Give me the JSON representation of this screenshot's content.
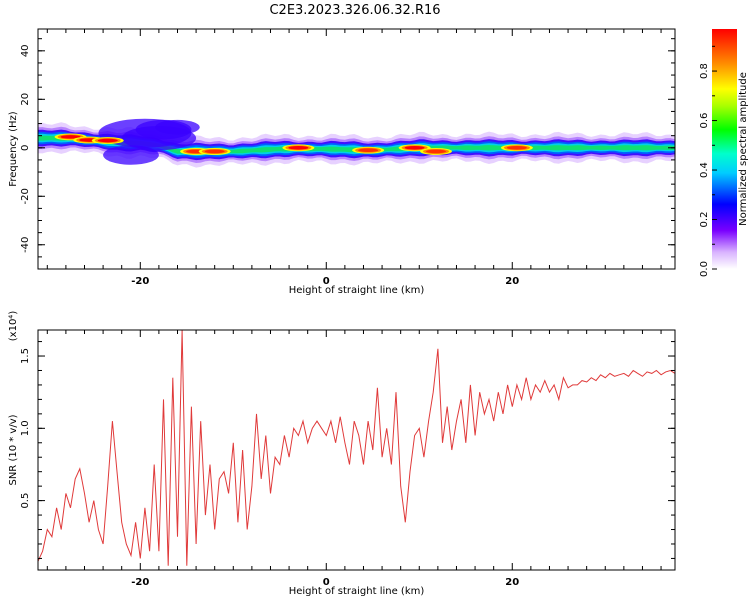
{
  "title": "C2E3.2023.326.06.32.R16",
  "chart_data": [
    {
      "type": "heatmap",
      "xlabel": "Height of straight line (km)",
      "ylabel": "Frequency (Hz)",
      "xlim": [
        -31,
        37.5
      ],
      "ylim": [
        -50,
        49
      ],
      "x_ticks": [
        -20,
        0,
        20
      ],
      "y_ticks": [
        -40,
        -20,
        0,
        20,
        40
      ],
      "colorbar": {
        "label": "Normalized spectral amplitude",
        "range": [
          0,
          0.97
        ],
        "ticks": [
          0.0,
          0.2,
          0.4,
          0.6,
          0.8
        ],
        "colormap": "rainbow (white-violet-blue-cyan-green-yellow-red)"
      },
      "ridge": {
        "x": [
          -31,
          -28,
          -25,
          -22,
          -20,
          -18,
          -16,
          -14,
          -10,
          -5,
          0,
          5,
          10,
          15,
          20,
          25,
          30,
          37.5
        ],
        "y": [
          4,
          4,
          3,
          2,
          2,
          1,
          -1.5,
          -1.5,
          -1.5,
          -0.5,
          -0.5,
          -1,
          0,
          0,
          0,
          0,
          0,
          0
        ]
      },
      "hotspots": [
        {
          "x": -27.5,
          "y": 4.5,
          "amp": 0.95
        },
        {
          "x": -25.5,
          "y": 3.2,
          "amp": 0.95
        },
        {
          "x": -23.5,
          "y": 3.0,
          "amp": 0.95
        },
        {
          "x": -14.0,
          "y": -1.5,
          "amp": 0.9
        },
        {
          "x": -12.0,
          "y": -1.5,
          "amp": 0.85
        },
        {
          "x": -3.0,
          "y": 0.0,
          "amp": 0.97
        },
        {
          "x": 4.5,
          "y": -1.0,
          "amp": 0.9
        },
        {
          "x": 9.5,
          "y": 0.0,
          "amp": 0.97
        },
        {
          "x": 11.8,
          "y": -1.5,
          "amp": 0.9
        },
        {
          "x": 20.5,
          "y": 0.0,
          "amp": 0.85
        }
      ]
    },
    {
      "type": "line",
      "xlabel": "Height of straight line (km)",
      "ylabel": "SNR (10 * v/v)",
      "y_exponent": "(x10⁴)",
      "xlim": [
        -31,
        37.5
      ],
      "ylim": [
        0.02,
        1.68
      ],
      "x_ticks": [
        -20,
        0,
        20
      ],
      "y_ticks": [
        0.5,
        1.0,
        1.5
      ],
      "color": "#e03a3a",
      "series": [
        {
          "x": [
            -31.0,
            -30.5,
            -30.0,
            -29.5,
            -29.0,
            -28.5,
            -28.0,
            -27.5,
            -27.0,
            -26.5,
            -26.0,
            -25.5,
            -25.0,
            -24.5,
            -24.0,
            -23.5,
            -23.0,
            -22.5,
            -22.0,
            -21.5,
            -21.0,
            -20.5,
            -20.0,
            -19.5,
            -19.0,
            -18.5,
            -18.0,
            -17.5,
            -17.0,
            -16.5,
            -16.0,
            -15.5,
            -15.0,
            -14.5,
            -14.0,
            -13.5,
            -13.0,
            -12.5,
            -12.0,
            -11.5,
            -11.0,
            -10.5,
            -10.0,
            -9.5,
            -9.0,
            -8.5,
            -8.0,
            -7.5,
            -7.0,
            -6.5,
            -6.0,
            -5.5,
            -5.0,
            -4.5,
            -4.0,
            -3.5,
            -3.0,
            -2.5,
            -2.0,
            -1.5,
            -1.0,
            -0.5,
            0.0,
            0.5,
            1.0,
            1.5,
            2.0,
            2.5,
            3.0,
            3.5,
            4.0,
            4.5,
            5.0,
            5.5,
            6.0,
            6.5,
            7.0,
            7.5,
            8.0,
            8.5,
            9.0,
            9.5,
            10.0,
            10.5,
            11.0,
            11.5,
            12.0,
            12.5,
            13.0,
            13.5,
            14.0,
            14.5,
            15.0,
            15.5,
            16.0,
            16.5,
            17.0,
            17.5,
            18.0,
            18.5,
            19.0,
            19.5,
            20.0,
            20.5,
            21.0,
            21.5,
            22.0,
            22.5,
            23.0,
            23.5,
            24.0,
            24.5,
            25.0,
            25.5,
            26.0,
            26.5,
            27.0,
            27.5,
            28.0,
            28.5,
            29.0,
            29.5,
            30.0,
            30.5,
            31.0,
            31.5,
            32.0,
            32.5,
            33.0,
            33.5,
            34.0,
            34.5,
            35.0,
            35.5,
            36.0,
            36.5,
            37.0,
            37.5
          ],
          "y": [
            0.08,
            0.15,
            0.3,
            0.25,
            0.45,
            0.3,
            0.55,
            0.45,
            0.65,
            0.72,
            0.55,
            0.35,
            0.5,
            0.3,
            0.2,
            0.6,
            1.05,
            0.7,
            0.35,
            0.2,
            0.12,
            0.35,
            0.1,
            0.45,
            0.15,
            0.75,
            0.15,
            1.2,
            0.05,
            1.35,
            0.25,
            1.68,
            0.05,
            1.15,
            0.2,
            1.05,
            0.4,
            0.75,
            0.3,
            0.65,
            0.7,
            0.55,
            0.9,
            0.35,
            0.85,
            0.3,
            0.6,
            1.1,
            0.65,
            0.95,
            0.55,
            0.8,
            0.75,
            0.95,
            0.8,
            1.0,
            0.95,
            1.05,
            0.9,
            1.0,
            1.05,
            1.0,
            0.95,
            1.05,
            0.9,
            1.08,
            0.9,
            0.75,
            1.05,
            0.95,
            0.75,
            1.05,
            0.85,
            1.28,
            0.8,
            1.0,
            0.75,
            1.25,
            0.6,
            0.35,
            0.7,
            0.95,
            1.0,
            0.8,
            1.05,
            1.25,
            1.55,
            0.9,
            1.15,
            0.85,
            1.05,
            1.2,
            0.9,
            1.3,
            0.95,
            1.25,
            1.1,
            1.2,
            1.05,
            1.25,
            1.1,
            1.3,
            1.15,
            1.3,
            1.2,
            1.35,
            1.2,
            1.3,
            1.25,
            1.33,
            1.25,
            1.3,
            1.2,
            1.35,
            1.28,
            1.3,
            1.3,
            1.33,
            1.32,
            1.35,
            1.33,
            1.37,
            1.35,
            1.38,
            1.36,
            1.37,
            1.38,
            1.36,
            1.4,
            1.38,
            1.36,
            1.39,
            1.38,
            1.4,
            1.37,
            1.39,
            1.4,
            1.38
          ]
        }
      ]
    }
  ]
}
